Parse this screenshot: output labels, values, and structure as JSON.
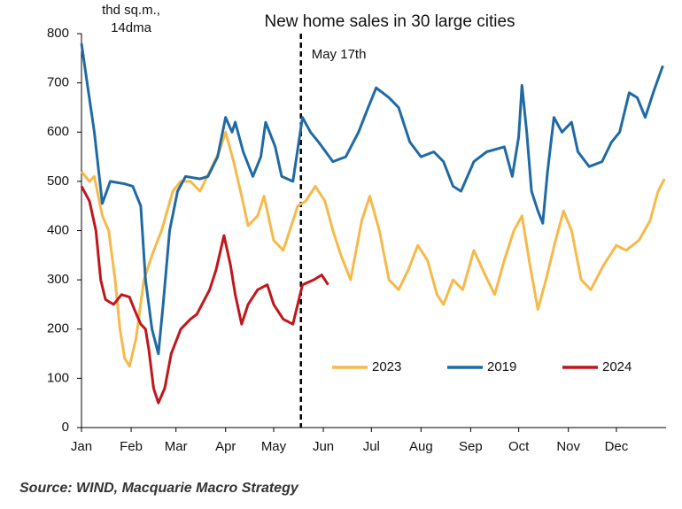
{
  "chart_data": {
    "type": "line",
    "title": "New home sales in 30 large cities",
    "y_label": [
      "thd sq.m.,",
      "14dma"
    ],
    "source": "Source: WIND, Macquarie Macro Strategy",
    "annotation": {
      "text": "May 17th",
      "x": 137
    },
    "xlim": [
      0,
      365
    ],
    "xticks": [
      {
        "value": 0,
        "label": "Jan"
      },
      {
        "value": 31,
        "label": "Feb"
      },
      {
        "value": 59,
        "label": "Mar"
      },
      {
        "value": 90,
        "label": "Apr"
      },
      {
        "value": 120,
        "label": "May"
      },
      {
        "value": 151,
        "label": "Jun"
      },
      {
        "value": 181,
        "label": "Jul"
      },
      {
        "value": 212,
        "label": "Aug"
      },
      {
        "value": 243,
        "label": "Sep"
      },
      {
        "value": 273,
        "label": "Oct"
      },
      {
        "value": 304,
        "label": "Nov"
      },
      {
        "value": 334,
        "label": "Dec"
      }
    ],
    "ylim": [
      0,
      800
    ],
    "yticks": [
      0,
      100,
      200,
      300,
      400,
      500,
      600,
      700,
      800
    ],
    "grid": false,
    "legend": "lower-right",
    "series": [
      {
        "name": "2023",
        "color": "#f6b94a",
        "x": [
          0,
          5,
          8,
          13,
          17,
          21,
          24,
          27,
          30,
          34,
          39,
          44,
          50,
          57,
          62,
          68,
          74,
          80,
          86,
          90,
          95,
          100,
          104,
          110,
          114,
          120,
          126,
          130,
          135,
          140,
          146,
          152,
          157,
          162,
          168,
          175,
          180,
          186,
          192,
          198,
          204,
          210,
          216,
          222,
          226,
          232,
          238,
          245,
          252,
          258,
          264,
          270,
          275,
          280,
          285,
          290,
          296,
          301,
          306,
          312,
          318,
          326,
          334,
          340,
          348,
          355,
          360,
          364
        ],
        "values": [
          520,
          500,
          510,
          430,
          400,
          300,
          200,
          140,
          125,
          180,
          300,
          350,
          400,
          480,
          500,
          500,
          480,
          520,
          560,
          600,
          540,
          470,
          410,
          430,
          470,
          380,
          360,
          400,
          450,
          460,
          490,
          460,
          400,
          350,
          300,
          420,
          470,
          400,
          300,
          280,
          320,
          370,
          340,
          270,
          250,
          300,
          280,
          360,
          310,
          270,
          340,
          400,
          430,
          330,
          240,
          300,
          380,
          440,
          400,
          300,
          280,
          330,
          370,
          360,
          380,
          420,
          480,
          505
        ]
      },
      {
        "name": "2019",
        "color": "#1f6aa5",
        "x": [
          0,
          4,
          8,
          13,
          18,
          27,
          32,
          37,
          40,
          44,
          48,
          51,
          55,
          60,
          65,
          74,
          79,
          85,
          90,
          94,
          96,
          101,
          107,
          112,
          115,
          121,
          125,
          132,
          138,
          143,
          148,
          157,
          165,
          173,
          179,
          184,
          192,
          198,
          205,
          212,
          220,
          226,
          232,
          237,
          245,
          253,
          264,
          269,
          273,
          275,
          278,
          281,
          285,
          288,
          291,
          295,
          300,
          306,
          310,
          317,
          325,
          331,
          336,
          342,
          347,
          352,
          357,
          363
        ],
        "values": [
          780,
          690,
          600,
          455,
          500,
          495,
          490,
          450,
          300,
          200,
          150,
          250,
          400,
          480,
          510,
          505,
          510,
          550,
          630,
          600,
          620,
          560,
          510,
          550,
          620,
          570,
          510,
          500,
          630,
          600,
          580,
          540,
          550,
          600,
          650,
          690,
          670,
          650,
          580,
          550,
          560,
          540,
          490,
          480,
          540,
          560,
          570,
          510,
          590,
          695,
          600,
          480,
          440,
          415,
          520,
          630,
          600,
          620,
          560,
          530,
          540,
          580,
          600,
          680,
          670,
          630,
          680,
          735
        ]
      },
      {
        "name": "2024",
        "color": "#c0161c",
        "x": [
          0,
          5,
          9,
          12,
          15,
          20,
          25,
          30,
          33,
          37,
          40,
          42,
          45,
          48,
          52,
          56,
          62,
          68,
          72,
          80,
          84,
          89,
          93,
          96,
          100,
          104,
          110,
          116,
          120,
          126,
          132,
          138,
          145,
          150,
          154
        ],
        "values": [
          490,
          460,
          400,
          300,
          260,
          250,
          270,
          265,
          240,
          210,
          200,
          160,
          80,
          50,
          80,
          150,
          200,
          220,
          230,
          280,
          320,
          390,
          330,
          270,
          210,
          250,
          280,
          290,
          250,
          220,
          210,
          290,
          300,
          310,
          290
        ]
      }
    ]
  }
}
